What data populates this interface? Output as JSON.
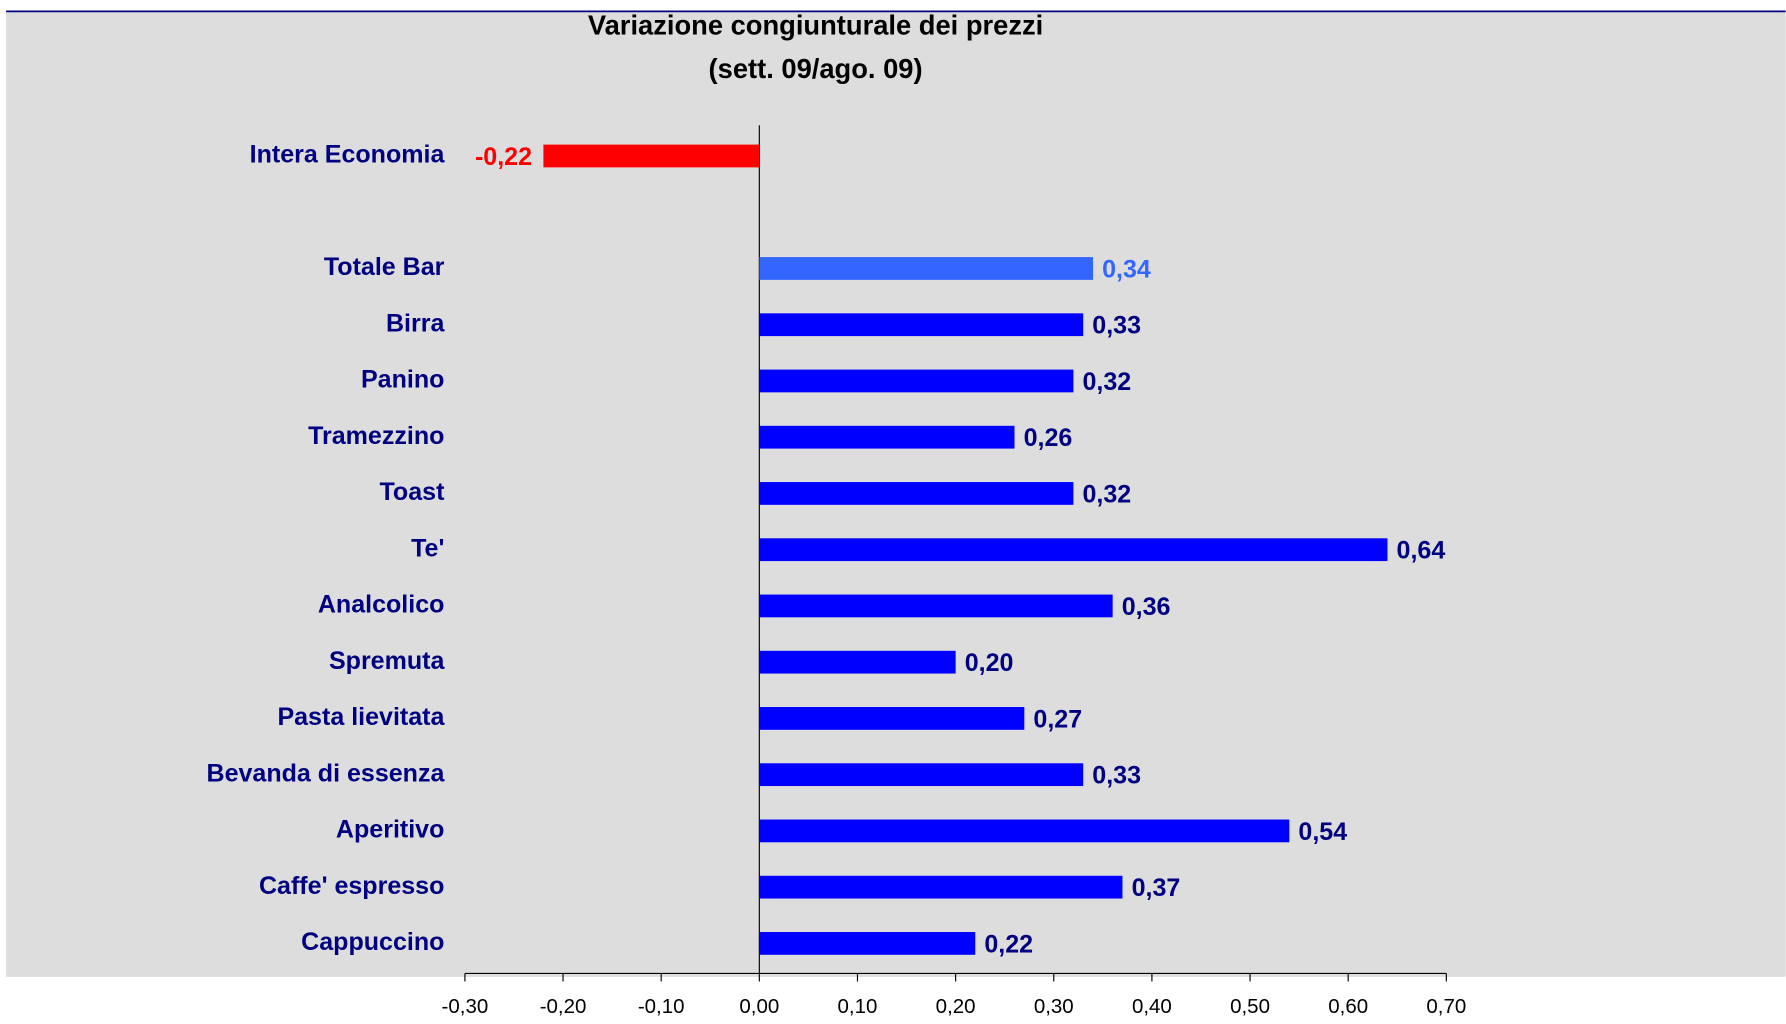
{
  "chart_data": {
    "type": "bar",
    "orientation": "horizontal",
    "title": "Variazione congiunturale dei prezzi",
    "subtitle": "(sett. 09/ago. 09)",
    "categories": [
      "Intera Economia",
      null,
      "Totale Bar",
      "Birra",
      "Panino",
      "Tramezzino",
      "Toast",
      "Te'",
      "Analcolico",
      "Spremuta",
      "Pasta lievitata",
      "Bevanda di essenza",
      "Aperitivo",
      "Caffe' espresso",
      "Cappuccino"
    ],
    "values": [
      -0.22,
      null,
      0.34,
      0.33,
      0.32,
      0.26,
      0.32,
      0.64,
      0.36,
      0.2,
      0.27,
      0.33,
      0.54,
      0.37,
      0.22
    ],
    "value_labels": [
      "-0,22",
      null,
      "0,34",
      "0,33",
      "0,32",
      "0,26",
      "0,32",
      "0,64",
      "0,36",
      "0,20",
      "0,27",
      "0,33",
      "0,54",
      "0,37",
      "0,22"
    ],
    "colors": [
      "#ff0000",
      null,
      "#3366ff",
      "#0000ff",
      "#0000ff",
      "#0000ff",
      "#0000ff",
      "#0000ff",
      "#0000ff",
      "#0000ff",
      "#0000ff",
      "#0000ff",
      "#0000ff",
      "#0000ff",
      "#0000ff"
    ],
    "label_colors": [
      "#ff0000",
      null,
      "#3366ff",
      "#000080",
      "#000080",
      "#000080",
      "#000080",
      "#000080",
      "#000080",
      "#000080",
      "#000080",
      "#000080",
      "#000080",
      "#000080",
      "#000080"
    ],
    "xlim": [
      -0.3,
      0.7
    ],
    "xticks": [
      {
        "value": -0.3,
        "label": "-0,30"
      },
      {
        "value": -0.2,
        "label": "-0,20"
      },
      {
        "value": -0.1,
        "label": "-0,10"
      },
      {
        "value": 0.0,
        "label": "0,00"
      },
      {
        "value": 0.1,
        "label": "0,10"
      },
      {
        "value": 0.2,
        "label": "0,20"
      },
      {
        "value": 0.3,
        "label": "0,30"
      },
      {
        "value": 0.4,
        "label": "0,40"
      },
      {
        "value": 0.5,
        "label": "0,50"
      },
      {
        "value": 0.6,
        "label": "0,60"
      },
      {
        "value": 0.7,
        "label": "0,70"
      }
    ]
  }
}
